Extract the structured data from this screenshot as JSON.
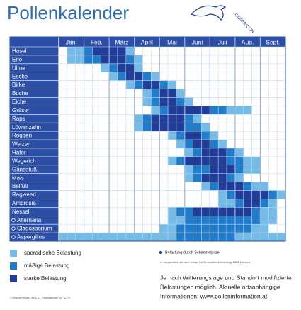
{
  "header": {
    "title": "Pollenkalender",
    "logo": "GENERICON"
  },
  "calendar": {
    "months": [
      "Jän.",
      "Feb.",
      "März",
      "April",
      "Mai",
      "Juni",
      "Juli",
      "Aug.",
      "Sept."
    ],
    "weeks_per_month": 3,
    "level_colors": [
      "#ffffff",
      "#74bbe8",
      "#1f7dcc",
      "#203d99"
    ],
    "rows": [
      {
        "name": "Hasel",
        "mold": false,
        "levels": [
          0,
          1,
          1,
          2,
          3,
          3,
          3,
          3,
          1,
          0,
          0,
          0,
          0,
          0,
          0,
          0,
          0,
          0,
          0,
          0,
          0,
          0,
          0,
          0,
          0,
          0,
          0
        ]
      },
      {
        "name": "Erle",
        "mold": false,
        "levels": [
          0,
          1,
          1,
          2,
          2,
          3,
          3,
          3,
          2,
          1,
          0,
          0,
          0,
          0,
          0,
          0,
          0,
          0,
          0,
          0,
          0,
          0,
          0,
          0,
          0,
          0,
          0
        ]
      },
      {
        "name": "Ulme",
        "mold": false,
        "levels": [
          0,
          0,
          0,
          0,
          0,
          1,
          2,
          3,
          3,
          1,
          0,
          0,
          0,
          0,
          0,
          0,
          0,
          0,
          0,
          0,
          0,
          0,
          0,
          0,
          0,
          0,
          0
        ]
      },
      {
        "name": "Esche",
        "mold": false,
        "levels": [
          0,
          0,
          0,
          0,
          0,
          0,
          1,
          2,
          3,
          3,
          2,
          1,
          0,
          0,
          0,
          0,
          0,
          0,
          0,
          0,
          0,
          0,
          0,
          0,
          0,
          0,
          0
        ]
      },
      {
        "name": "Birke",
        "mold": false,
        "levels": [
          0,
          0,
          0,
          0,
          0,
          0,
          0,
          0,
          1,
          2,
          3,
          3,
          2,
          1,
          0,
          0,
          0,
          0,
          0,
          0,
          0,
          0,
          0,
          0,
          0,
          0,
          0
        ]
      },
      {
        "name": "Buche",
        "mold": false,
        "levels": [
          0,
          0,
          0,
          0,
          0,
          0,
          0,
          0,
          0,
          0,
          1,
          2,
          3,
          3,
          1,
          0,
          0,
          0,
          0,
          0,
          0,
          0,
          0,
          0,
          0,
          0,
          0
        ]
      },
      {
        "name": "Eiche",
        "mold": false,
        "levels": [
          0,
          0,
          0,
          0,
          0,
          0,
          0,
          0,
          0,
          0,
          1,
          2,
          3,
          3,
          2,
          1,
          0,
          0,
          0,
          0,
          0,
          0,
          0,
          0,
          0,
          0,
          0
        ]
      },
      {
        "name": "Gräser",
        "mold": false,
        "levels": [
          0,
          0,
          0,
          0,
          0,
          0,
          0,
          0,
          0,
          0,
          0,
          1,
          2,
          3,
          3,
          3,
          3,
          3,
          2,
          2,
          1,
          1,
          1,
          0,
          0,
          0,
          0
        ]
      },
      {
        "name": "Raps",
        "mold": false,
        "levels": [
          0,
          0,
          0,
          0,
          0,
          0,
          0,
          0,
          0,
          1,
          2,
          3,
          3,
          3,
          3,
          2,
          1,
          0,
          0,
          0,
          0,
          0,
          0,
          0,
          0,
          0,
          0
        ]
      },
      {
        "name": "Löwenzahn",
        "mold": false,
        "levels": [
          0,
          0,
          0,
          0,
          0,
          0,
          0,
          0,
          0,
          1,
          2,
          3,
          3,
          3,
          3,
          2,
          2,
          1,
          0,
          0,
          0,
          0,
          0,
          0,
          0,
          0,
          0
        ]
      },
      {
        "name": "Roggen",
        "mold": false,
        "levels": [
          0,
          0,
          0,
          0,
          0,
          0,
          0,
          0,
          0,
          0,
          0,
          0,
          0,
          1,
          2,
          3,
          3,
          2,
          1,
          0,
          0,
          0,
          0,
          0,
          0,
          0,
          0
        ]
      },
      {
        "name": "Weizen",
        "mold": false,
        "levels": [
          0,
          0,
          0,
          0,
          0,
          0,
          0,
          0,
          0,
          0,
          0,
          0,
          0,
          0,
          1,
          2,
          3,
          3,
          2,
          1,
          0,
          0,
          0,
          0,
          0,
          0,
          0
        ]
      },
      {
        "name": "Hafer",
        "mold": false,
        "levels": [
          0,
          0,
          0,
          0,
          0,
          0,
          0,
          0,
          0,
          0,
          0,
          0,
          0,
          0,
          0,
          1,
          2,
          3,
          3,
          3,
          2,
          1,
          0,
          0,
          0,
          0,
          0
        ]
      },
      {
        "name": "Wegerich",
        "mold": false,
        "levels": [
          0,
          0,
          0,
          0,
          0,
          0,
          0,
          0,
          0,
          0,
          0,
          0,
          0,
          1,
          2,
          3,
          3,
          3,
          3,
          3,
          2,
          2,
          1,
          1,
          0,
          0,
          0
        ]
      },
      {
        "name": "Gänsefuß",
        "mold": false,
        "levels": [
          0,
          0,
          0,
          0,
          0,
          0,
          0,
          0,
          0,
          0,
          0,
          0,
          0,
          0,
          0,
          1,
          2,
          2,
          3,
          3,
          3,
          2,
          1,
          1,
          0,
          0,
          0
        ]
      },
      {
        "name": "Mais",
        "mold": false,
        "levels": [
          0,
          0,
          0,
          0,
          0,
          0,
          0,
          0,
          0,
          0,
          0,
          0,
          0,
          0,
          0,
          1,
          2,
          3,
          3,
          3,
          2,
          1,
          0,
          0,
          0,
          0,
          0
        ]
      },
      {
        "name": "Beifuß",
        "mold": false,
        "levels": [
          0,
          0,
          0,
          0,
          0,
          0,
          0,
          0,
          0,
          0,
          0,
          0,
          0,
          0,
          0,
          0,
          0,
          1,
          2,
          3,
          3,
          3,
          2,
          1,
          1,
          0,
          0
        ]
      },
      {
        "name": "Ragweed",
        "mold": false,
        "levels": [
          0,
          0,
          0,
          0,
          0,
          0,
          0,
          0,
          0,
          0,
          0,
          0,
          0,
          0,
          0,
          0,
          0,
          0,
          0,
          1,
          2,
          3,
          3,
          3,
          3,
          2,
          1
        ]
      },
      {
        "name": "Ambrosia",
        "mold": false,
        "levels": [
          0,
          0,
          0,
          0,
          0,
          0,
          0,
          0,
          0,
          0,
          0,
          0,
          0,
          0,
          0,
          0,
          0,
          0,
          0,
          1,
          1,
          2,
          3,
          3,
          2,
          1,
          0
        ]
      },
      {
        "name": "Nessel",
        "mold": false,
        "levels": [
          0,
          0,
          0,
          0,
          0,
          0,
          0,
          0,
          0,
          0,
          0,
          0,
          0,
          1,
          2,
          2,
          3,
          3,
          3,
          3,
          3,
          3,
          3,
          2,
          1,
          1,
          0
        ]
      },
      {
        "name": "Alternaria",
        "mold": true,
        "levels": [
          0,
          0,
          0,
          0,
          0,
          0,
          0,
          0,
          0,
          0,
          0,
          0,
          0,
          1,
          1,
          2,
          2,
          2,
          2,
          2,
          2,
          2,
          2,
          2,
          1,
          1,
          0
        ]
      },
      {
        "name": "Cladosporium",
        "mold": true,
        "levels": [
          0,
          0,
          0,
          0,
          0,
          0,
          0,
          0,
          0,
          0,
          0,
          0,
          1,
          1,
          2,
          2,
          2,
          2,
          2,
          2,
          2,
          2,
          2,
          1,
          1,
          0,
          0
        ]
      },
      {
        "name": "Aspergillus",
        "mold": true,
        "levels": [
          1,
          1,
          1,
          1,
          1,
          1,
          1,
          1,
          1,
          1,
          1,
          1,
          1,
          1,
          2,
          2,
          2,
          2,
          2,
          2,
          2,
          1,
          1,
          1,
          1,
          1,
          1
        ]
      }
    ]
  },
  "legend": [
    "sporadische Belastung",
    "mäßige Belastung",
    "starke Belastung"
  ],
  "mold_note": "Belastung durch Schimmelpilze",
  "cooperation": "In Kooperation mit dem Institut für Gesundheitsförderung, 8501 Lieboch",
  "footer": [
    "Je nach Witterungslage und Standort modifizierte",
    "Belastungen möglich. Aktuelle ortsabhängige",
    "Informationen: www.polleninformation.at"
  ],
  "file_note": "G:\\Sitecore\\Grafik_3603_11_Pollenkalender_08_11_07"
}
